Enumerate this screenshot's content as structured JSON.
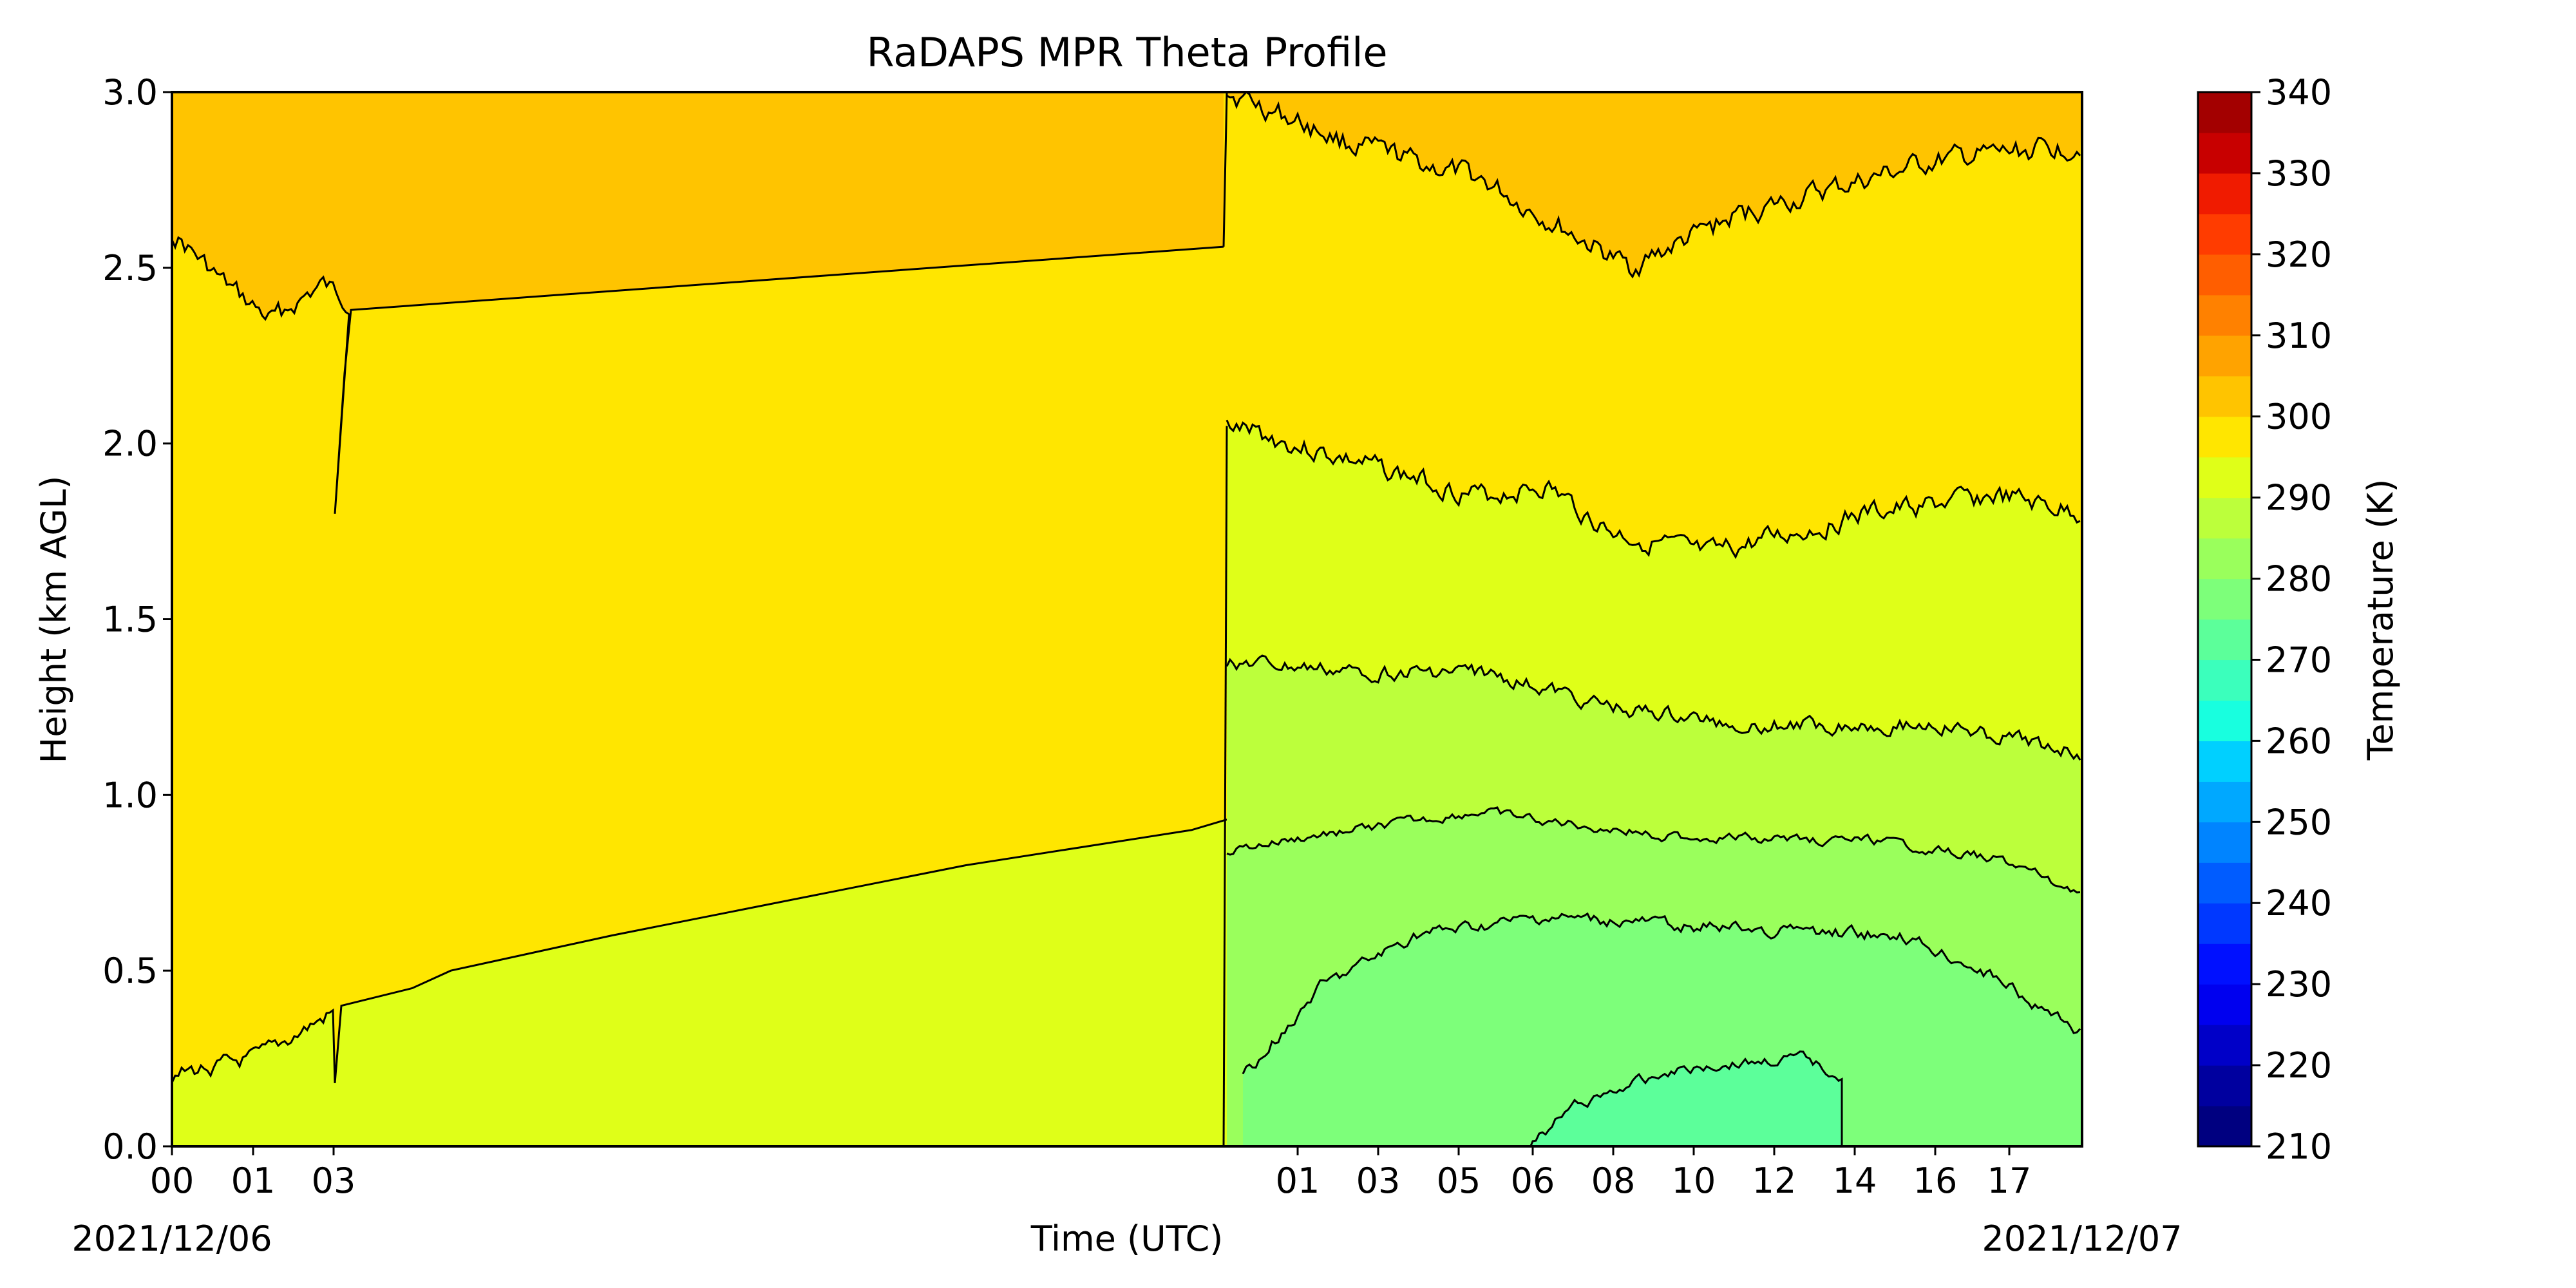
{
  "chart_data": {
    "type": "heatmap",
    "title": "RaDAPS MPR Theta Profile",
    "xlabel": "Time (UTC)",
    "ylabel": "Height (km AGL)",
    "ylim": [
      0,
      3.0
    ],
    "yticks": [
      "0.0",
      "0.5",
      "1.0",
      "1.5",
      "2.0",
      "2.5",
      "3.0"
    ],
    "xtick_labels": [
      "00",
      "01",
      "03",
      "01",
      "03",
      "05",
      "06",
      "08",
      "10",
      "12",
      "14",
      "16",
      "17"
    ],
    "date_labels": {
      "start": "2021/12/06",
      "end": "2021/12/07"
    },
    "colorbar": {
      "label": "Temperature (K)",
      "range": [
        210,
        340
      ],
      "step": 5,
      "tick_labels": [
        "210",
        "220",
        "230",
        "240",
        "250",
        "260",
        "270",
        "280",
        "290",
        "300",
        "310",
        "320",
        "330",
        "340"
      ],
      "colors": [
        "#000080",
        "#00009f",
        "#0000c8",
        "#0000ef",
        "#0010ff",
        "#0038ff",
        "#005cff",
        "#0084ff",
        "#00a8ff",
        "#00d0ff",
        "#18ffdf",
        "#3bffbc",
        "#5cff9a",
        "#7dff7a",
        "#9aff5c",
        "#bcff3b",
        "#dfff18",
        "#ffe600",
        "#ffc400",
        "#ffa300",
        "#ff8100",
        "#ff5e00",
        "#ff3c00",
        "#f01b00",
        "#c80000",
        "#a30000"
      ]
    },
    "grid": false,
    "theta_bands_K": [
      "280-285",
      "285-290",
      "290-295",
      "295-300",
      "300-305"
    ]
  }
}
